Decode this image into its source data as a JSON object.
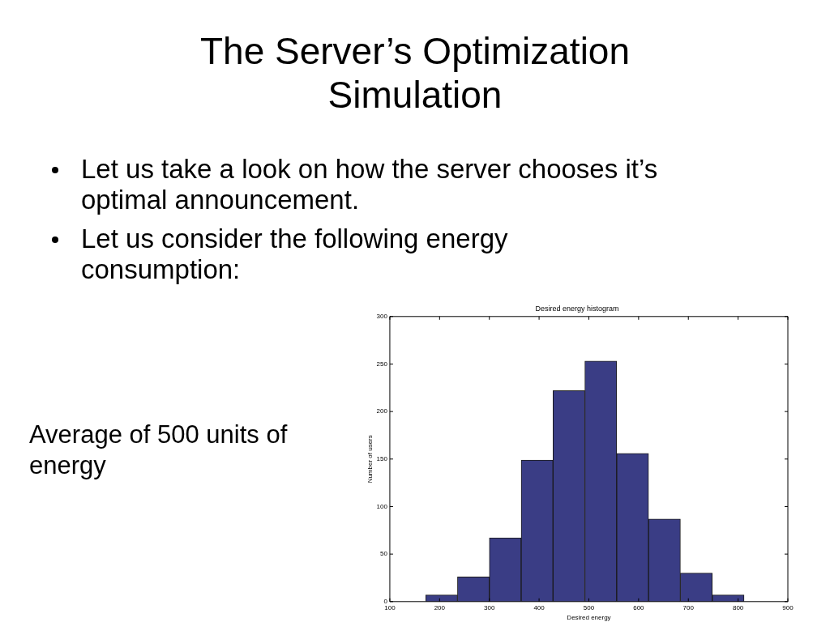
{
  "chart_data": {
    "type": "histogram",
    "title": "The Server’s Optimization Simulation",
    "subtitle": "Desired energy histogram",
    "xlabel": "Desired energy",
    "ylabel": "Number of users",
    "bins": [
      172,
      236,
      300,
      364,
      428,
      492,
      556,
      620,
      684,
      748,
      812
    ],
    "values": [
      7,
      26,
      67,
      149,
      222,
      253,
      156,
      87,
      30,
      7
    ],
    "color": "#3a3d85",
    "xlim": [
      100,
      900
    ],
    "xticks": [
      100,
      200,
      300,
      400,
      500,
      600,
      700,
      800,
      900
    ],
    "ylim": [
      0,
      300
    ],
    "yticks": [
      0,
      50,
      100,
      150,
      200,
      250,
      300
    ],
    "grid": false,
    "legend": false,
    "annotations": [
      "Let us take a look on how the server chooses it’s optimal announcement.",
      "Let us consider the following energy consumption:",
      "Average of 500 units of energy"
    ]
  }
}
